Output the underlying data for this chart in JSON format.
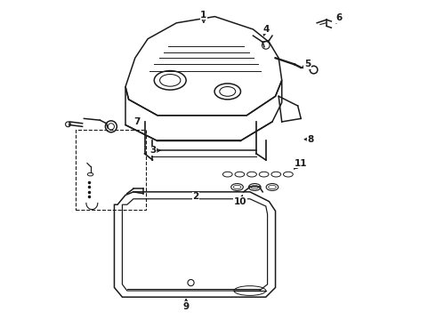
{
  "bg_color": "#ffffff",
  "line_color": "#1a1a1a",
  "lw": 1.1,
  "figsize": [
    4.9,
    3.6
  ],
  "dpi": 100,
  "label_arrows": {
    "1": {
      "lpos": [
        0.455,
        0.955
      ],
      "aend": [
        0.455,
        0.92
      ]
    },
    "2": {
      "lpos": [
        0.43,
        0.385
      ],
      "aend": [
        0.43,
        0.41
      ]
    },
    "3": {
      "lpos": [
        0.295,
        0.53
      ],
      "aend": [
        0.33,
        0.53
      ]
    },
    "4": {
      "lpos": [
        0.65,
        0.91
      ],
      "aend": [
        0.64,
        0.88
      ]
    },
    "5": {
      "lpos": [
        0.78,
        0.8
      ],
      "aend": [
        0.755,
        0.785
      ]
    },
    "6": {
      "lpos": [
        0.88,
        0.945
      ],
      "aend": [
        0.865,
        0.92
      ]
    },
    "7": {
      "lpos": [
        0.245,
        0.62
      ],
      "aend": [
        0.245,
        0.6
      ]
    },
    "8": {
      "lpos": [
        0.79,
        0.565
      ],
      "aend": [
        0.76,
        0.565
      ]
    },
    "9": {
      "lpos": [
        0.4,
        0.04
      ],
      "aend": [
        0.4,
        0.075
      ]
    },
    "10": {
      "lpos": [
        0.57,
        0.37
      ],
      "aend": [
        0.58,
        0.4
      ]
    },
    "11": {
      "lpos": [
        0.76,
        0.49
      ],
      "aend": [
        0.73,
        0.465
      ]
    }
  }
}
